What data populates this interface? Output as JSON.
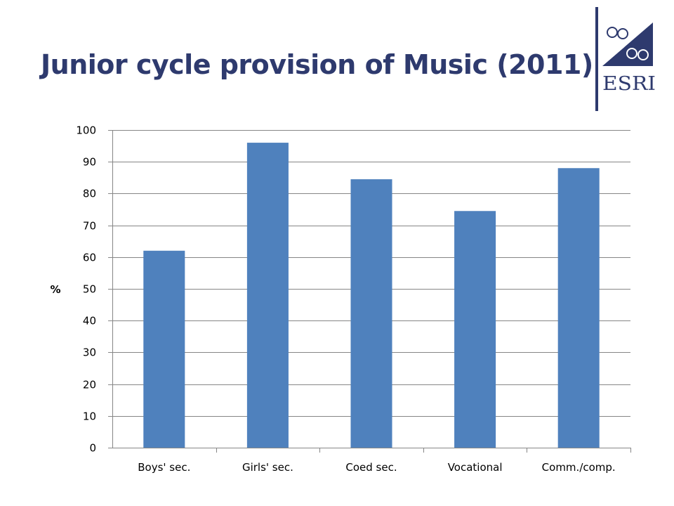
{
  "title": "Junior cycle provision of Music (2011)",
  "logo": {
    "text": "ESRI",
    "icon": "esri-logo-icon"
  },
  "chart_data": {
    "type": "bar",
    "categories": [
      "Boys' sec.",
      "Girls' sec.",
      "Coed sec.",
      "Vocational",
      "Comm./comp."
    ],
    "values": [
      62,
      96,
      84.5,
      74.5,
      88
    ],
    "ylabel": "%",
    "xlabel": "",
    "ylim": [
      0,
      100
    ],
    "yticks": [
      0,
      10,
      20,
      30,
      40,
      50,
      60,
      70,
      80,
      90,
      100
    ],
    "grid": true,
    "bar_color": "#4f81bd",
    "gridline_color": "#868686"
  }
}
